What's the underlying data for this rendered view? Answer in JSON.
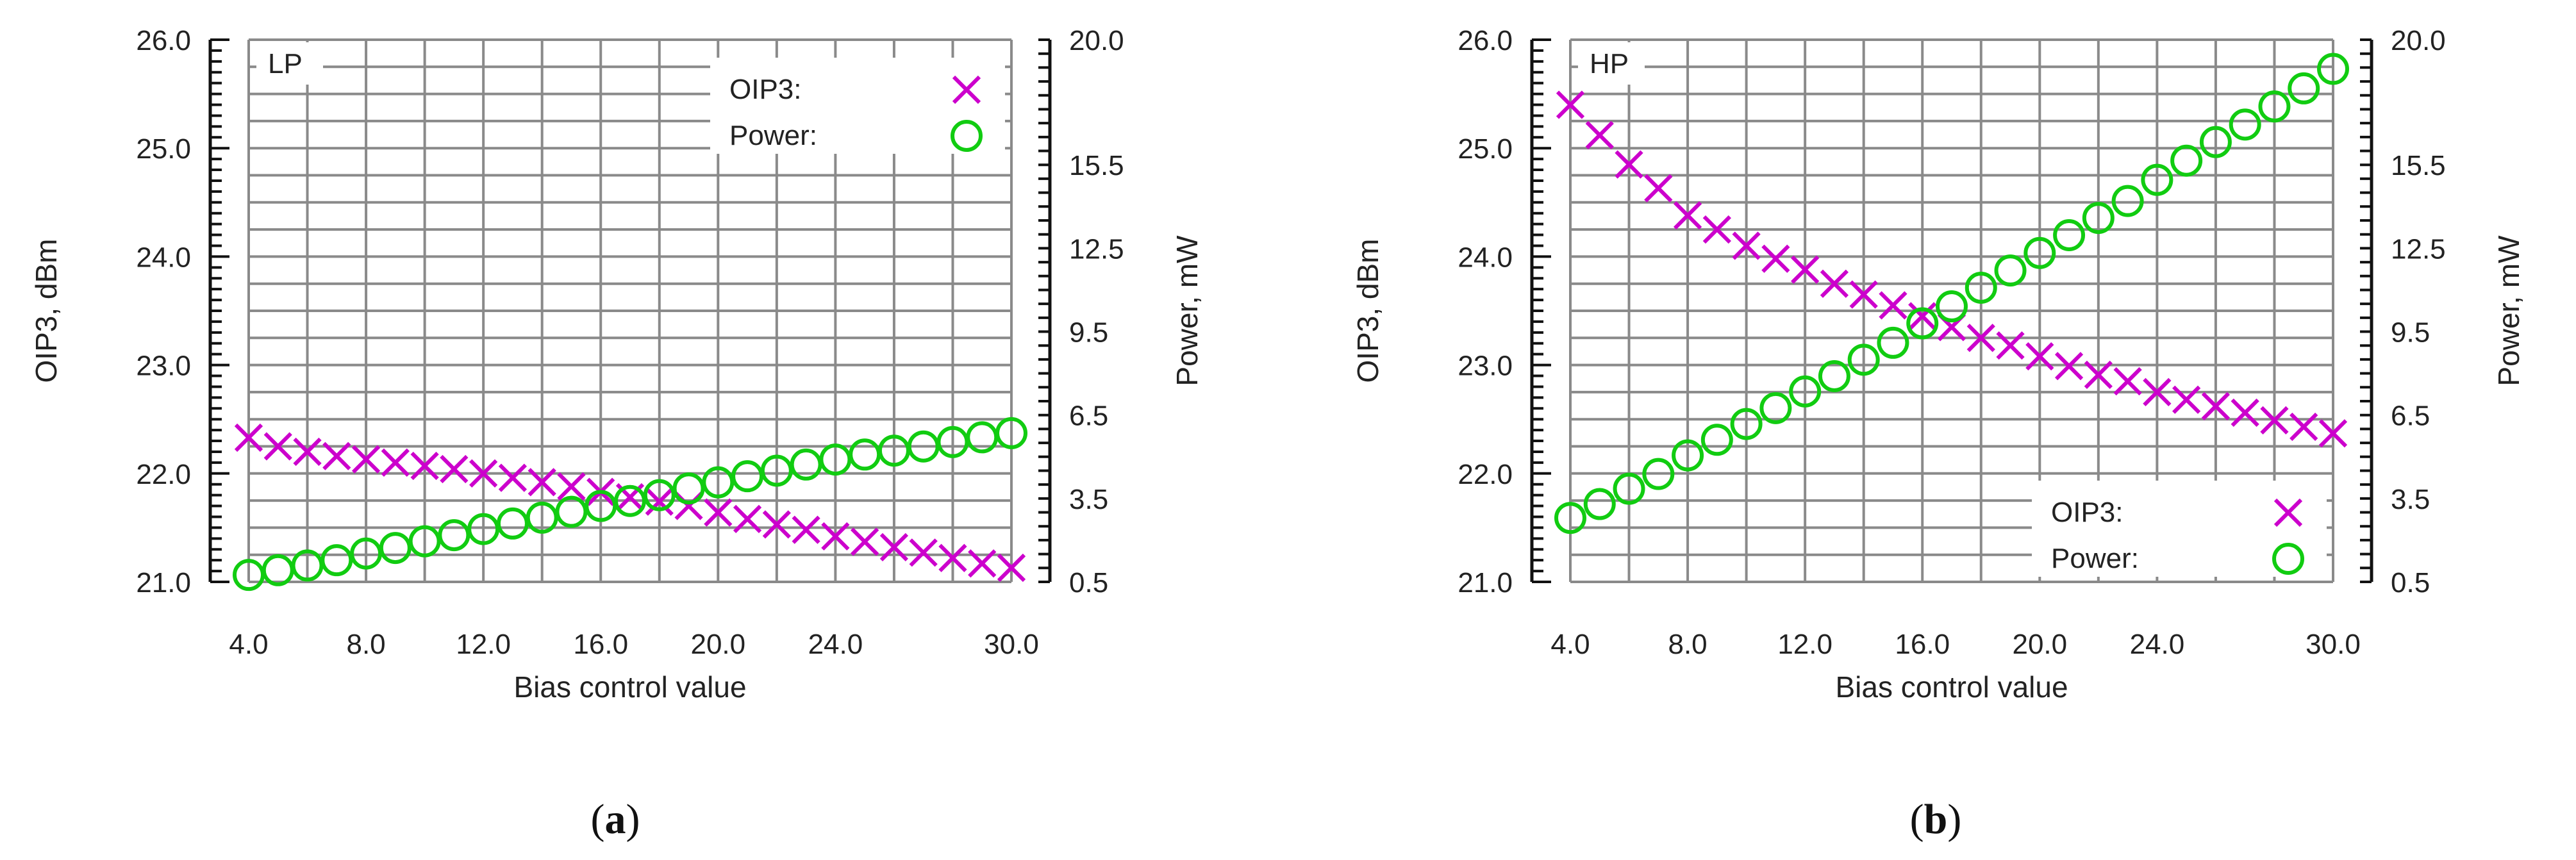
{
  "chart_data": [
    {
      "type": "scatter",
      "panel_label": "LP",
      "caption": {
        "open": "(",
        "letter": "a",
        "close": ")"
      },
      "xlabel": "Bias control value",
      "ylabel_left": "OIP3, dBm",
      "ylabel_right": "Power, mW",
      "xlim": [
        4,
        30
      ],
      "ylim_left": [
        21,
        26
      ],
      "ylim_right": [
        0.5,
        20
      ],
      "x_ticks": [
        "4.0",
        "8.0",
        "12.0",
        "16.0",
        "20.0",
        "24.0",
        "30.0"
      ],
      "x_tick_values": [
        4,
        8,
        12,
        16,
        20,
        24,
        30
      ],
      "y_left_ticks": [
        "21.0",
        "22.0",
        "23.0",
        "24.0",
        "25.0",
        "26.0"
      ],
      "y_left_tick_values": [
        21,
        22,
        23,
        24,
        25,
        26
      ],
      "y_right_ticks": [
        "0.5",
        "3.5",
        "6.5",
        "9.5",
        "12.5",
        "15.5",
        "20.0"
      ],
      "y_right_tick_values": [
        0.5,
        3.5,
        6.5,
        9.5,
        12.5,
        15.5,
        20.0
      ],
      "grid": true,
      "legend_position": "top-right",
      "x": [
        4,
        5,
        6,
        7,
        8,
        9,
        10,
        11,
        12,
        13,
        14,
        15,
        16,
        17,
        18,
        19,
        20,
        21,
        22,
        23,
        24,
        25,
        26,
        27,
        28,
        29,
        30
      ],
      "series": [
        {
          "name": "OIP3:",
          "marker": "x",
          "color": "#cc00cc",
          "axis": "left",
          "values": [
            22.33,
            22.25,
            22.2,
            22.16,
            22.13,
            22.1,
            22.07,
            22.04,
            22.0,
            21.96,
            21.92,
            21.88,
            21.83,
            21.78,
            21.74,
            21.7,
            21.64,
            21.58,
            21.53,
            21.48,
            21.42,
            21.37,
            21.32,
            21.27,
            21.22,
            21.17,
            21.13
          ]
        },
        {
          "name": "Power:",
          "marker": "o",
          "color": "#11cc11",
          "axis": "right",
          "values": [
            0.75,
            0.92,
            1.09,
            1.28,
            1.52,
            1.72,
            1.96,
            2.18,
            2.4,
            2.6,
            2.81,
            3.02,
            3.23,
            3.41,
            3.62,
            3.86,
            4.08,
            4.3,
            4.5,
            4.72,
            4.9,
            5.08,
            5.22,
            5.37,
            5.53,
            5.7,
            5.85
          ]
        }
      ]
    },
    {
      "type": "scatter",
      "panel_label": "HP",
      "caption": {
        "open": "(",
        "letter": "b",
        "close": ")"
      },
      "xlabel": "Bias control value",
      "ylabel_left": "OIP3, dBm",
      "ylabel_right": "Power, mW",
      "xlim": [
        4,
        30
      ],
      "ylim_left": [
        21,
        26
      ],
      "ylim_right": [
        0.5,
        20
      ],
      "x_ticks": [
        "4.0",
        "8.0",
        "12.0",
        "16.0",
        "20.0",
        "24.0",
        "30.0"
      ],
      "x_tick_values": [
        4,
        8,
        12,
        16,
        20,
        24,
        30
      ],
      "y_left_ticks": [
        "21.0",
        "22.0",
        "23.0",
        "24.0",
        "25.0",
        "26.0"
      ],
      "y_left_tick_values": [
        21,
        22,
        23,
        24,
        25,
        26
      ],
      "y_right_ticks": [
        "0.5",
        "3.5",
        "6.5",
        "9.5",
        "12.5",
        "15.5",
        "20.0"
      ],
      "y_right_tick_values": [
        0.5,
        3.5,
        6.5,
        9.5,
        12.5,
        15.5,
        20.0
      ],
      "grid": true,
      "legend_position": "bottom-right",
      "x": [
        4,
        5,
        6,
        7,
        8,
        9,
        10,
        11,
        12,
        13,
        14,
        15,
        16,
        17,
        18,
        19,
        20,
        21,
        22,
        23,
        24,
        25,
        26,
        27,
        28,
        29,
        30
      ],
      "series": [
        {
          "name": "OIP3:",
          "marker": "x",
          "color": "#cc00cc",
          "axis": "left",
          "values": [
            25.4,
            25.12,
            24.85,
            24.63,
            24.38,
            24.25,
            24.1,
            23.98,
            23.88,
            23.75,
            23.65,
            23.55,
            23.45,
            23.35,
            23.25,
            23.18,
            23.08,
            22.99,
            22.91,
            22.85,
            22.75,
            22.68,
            22.62,
            22.56,
            22.49,
            22.43,
            22.37
          ]
        },
        {
          "name": "Power:",
          "marker": "o",
          "color": "#11cc11",
          "axis": "right",
          "values": [
            2.8,
            3.3,
            3.85,
            4.38,
            5.05,
            5.61,
            6.18,
            6.75,
            7.35,
            7.9,
            8.49,
            9.1,
            9.8,
            10.41,
            11.08,
            11.7,
            12.33,
            12.97,
            13.59,
            14.2,
            14.96,
            15.65,
            16.32,
            16.95,
            17.6,
            18.25,
            18.95
          ]
        }
      ]
    }
  ]
}
